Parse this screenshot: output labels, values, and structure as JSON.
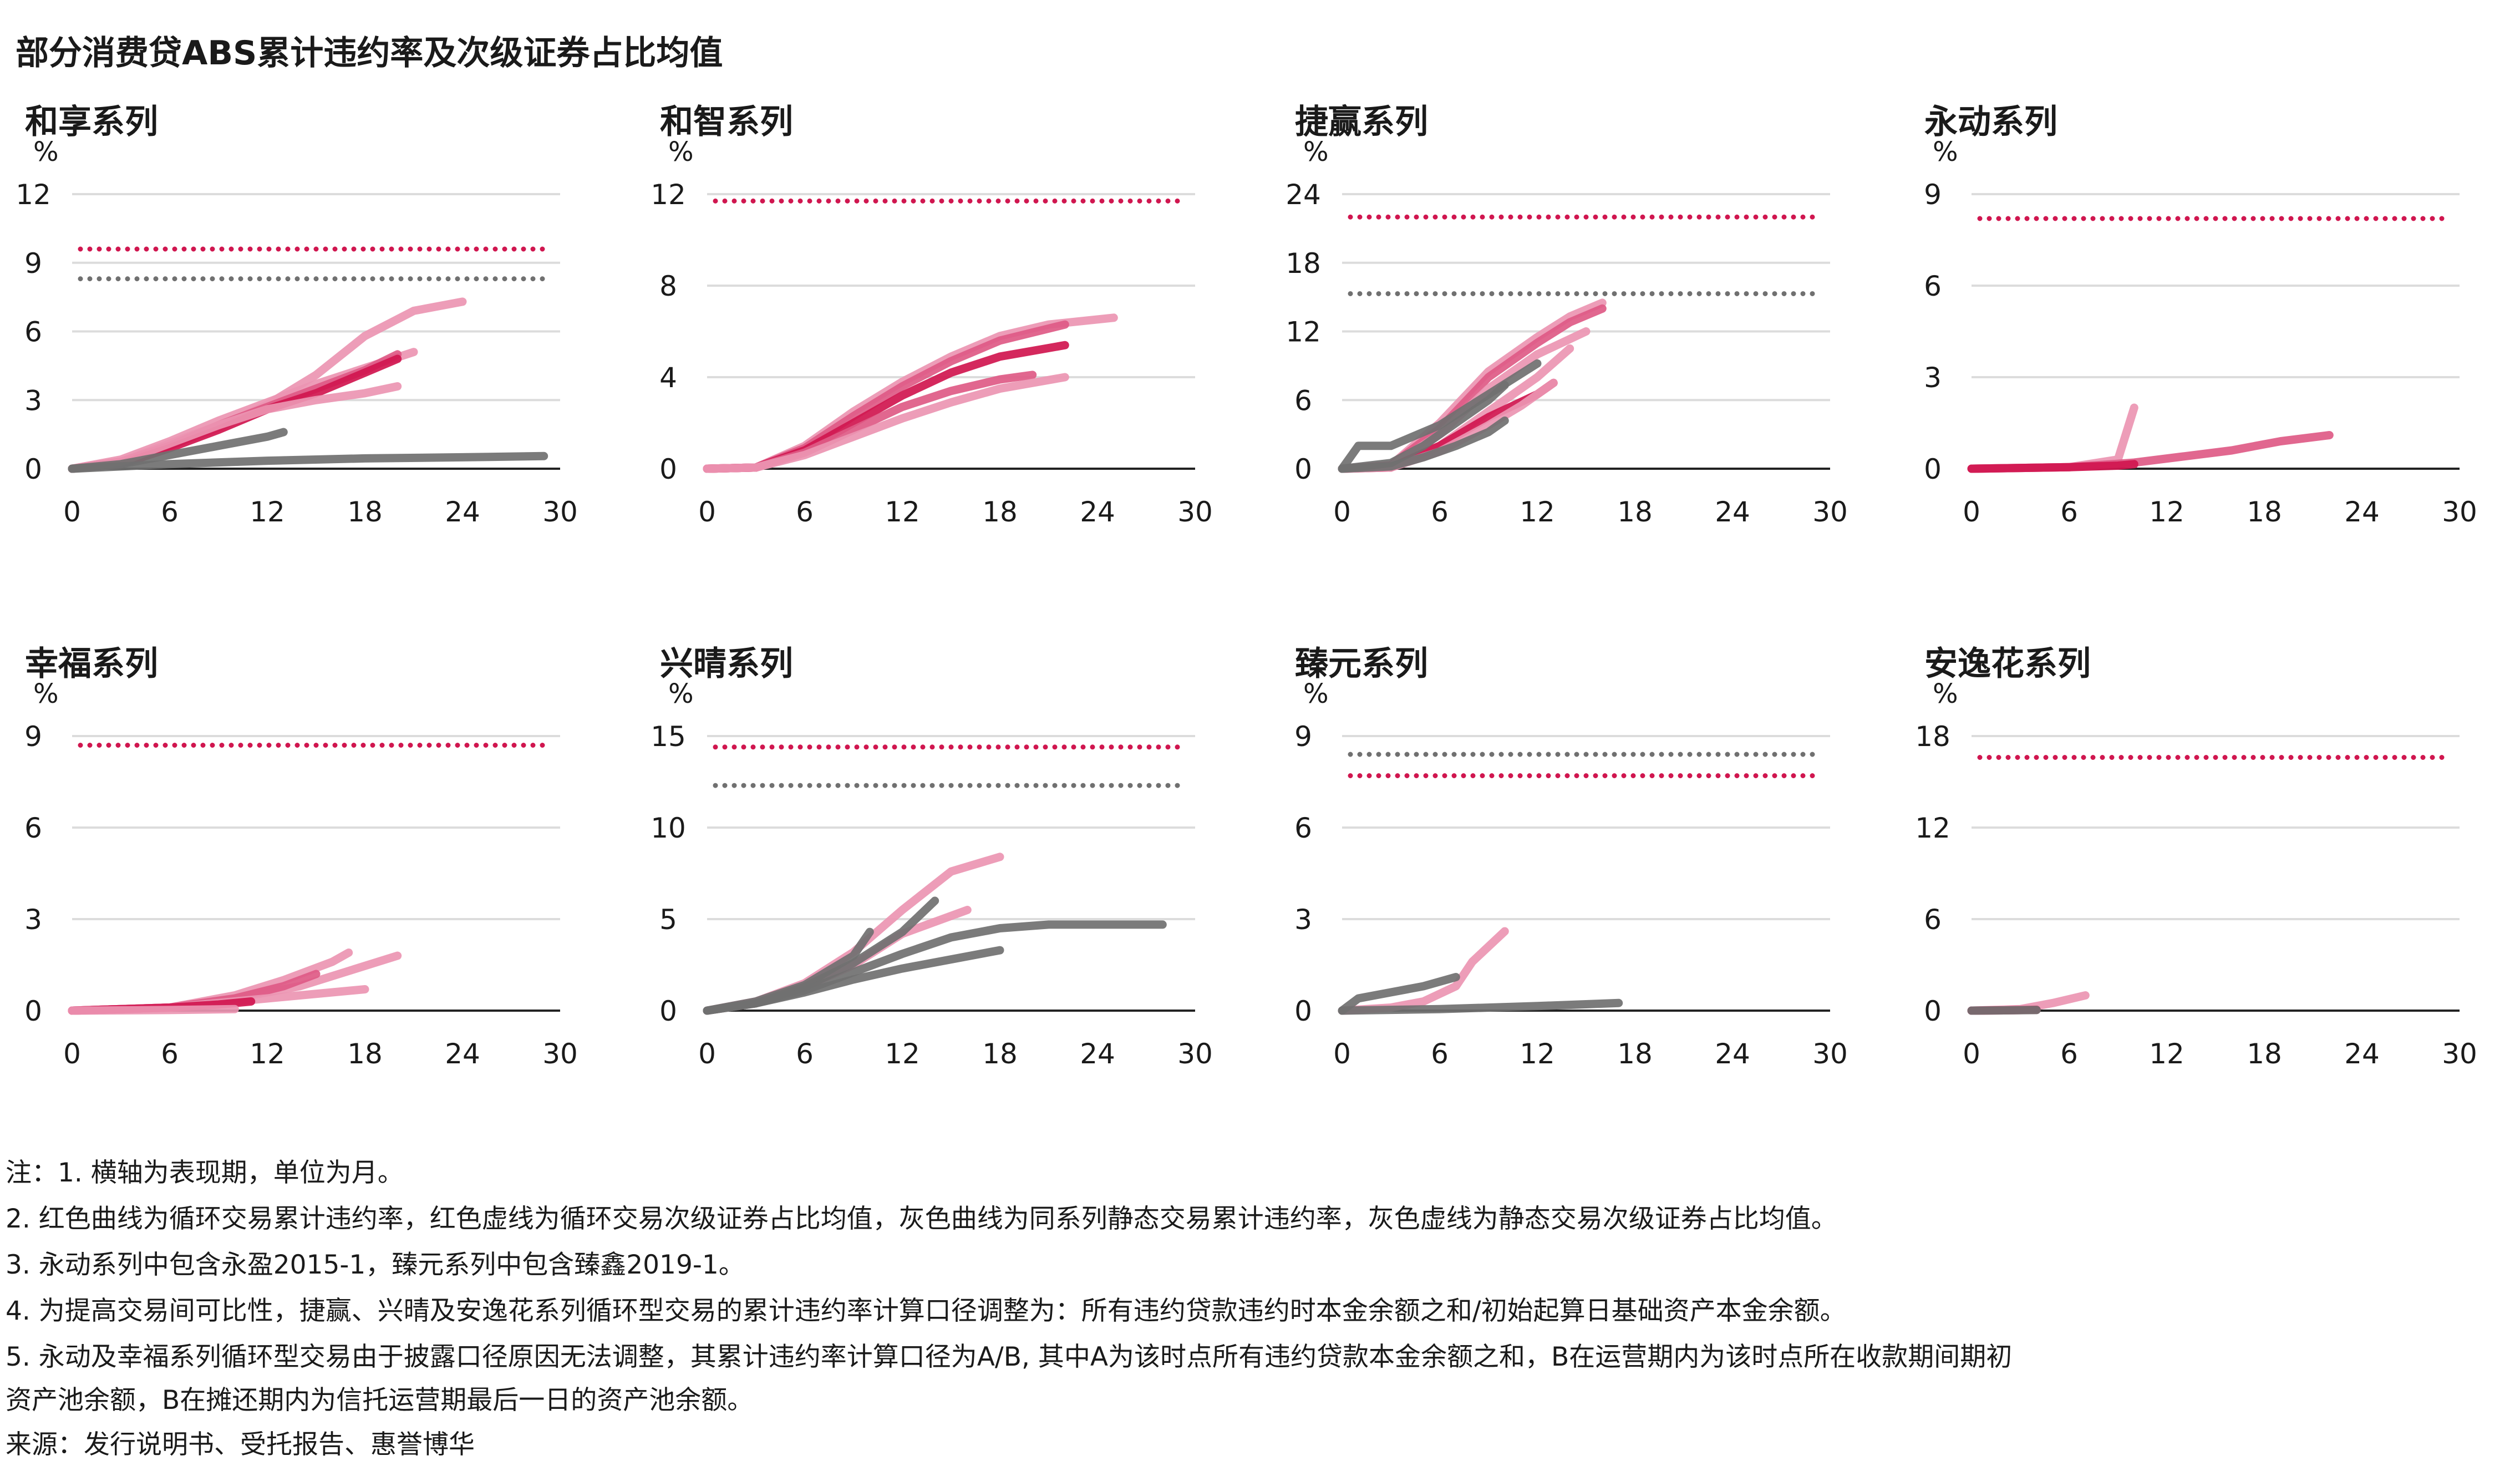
{
  "title": "部分消费贷ABS累计违约率及次级证券占比均值",
  "colors": {
    "red": "#d0164f",
    "red_mid": "#de5a86",
    "red_light": "#eb95b2",
    "gray": "#707070",
    "grid": "#dcdcdc",
    "axis": "#222222"
  },
  "notes": [
    "注：1.  横轴为表现期，单位为月。",
    "2.  红色曲线为循环交易累计违约率，红色虚线为循环交易次级证券占比均值，灰色曲线为同系列静态交易累计违约率，灰色虚线为静态交易次级证券占比均值。",
    "3.  永动系列中包含永盈2015-1，臻元系列中包含臻鑫2019-1。",
    "4.  为提高交易间可比性，捷赢、兴晴及安逸花系列循环型交易的累计违约率计算口径调整为：所有违约贷款违约时本金余额之和/初始起算日基础资产本金余额。",
    "5.  永动及幸福系列循环型交易由于披露口径原因无法调整，其累计违约率计算口径为A/B, 其中A为该时点所有违约贷款本金余额之和，B在运营期内为该时点所在收款期间期初",
    "资产池余额，B在摊还期内为信托运营期最后一日的资产池余额。"
  ],
  "source": "来源：发行说明书、受托报告、惠誉博华",
  "chart_data": [
    {
      "type": "line",
      "title": "和享系列",
      "ylabel": "%",
      "xlim": [
        0,
        30
      ],
      "ylim": [
        0,
        12
      ],
      "x_ticks": [
        0,
        6,
        12,
        18,
        24,
        30
      ],
      "y_ticks": [
        0,
        3,
        6,
        9,
        12
      ],
      "grid": true,
      "ref_lines": [
        {
          "y": 9.6,
          "color": "red"
        },
        {
          "y": 8.3,
          "color": "gray"
        }
      ],
      "series": [
        {
          "color": "red_light",
          "x": [
            0,
            3,
            6,
            9,
            12,
            15,
            18,
            21,
            24
          ],
          "y": [
            0,
            0.3,
            1,
            1.8,
            2.8,
            4.1,
            5.8,
            6.9,
            7.3
          ]
        },
        {
          "color": "red_light",
          "x": [
            0,
            3,
            6,
            9,
            12,
            15,
            18,
            21
          ],
          "y": [
            0,
            0.4,
            1.2,
            2.1,
            2.9,
            3.7,
            4.4,
            5.1
          ]
        },
        {
          "color": "red_mid",
          "x": [
            0,
            3,
            6,
            9,
            12,
            15,
            18,
            20
          ],
          "y": [
            0,
            0.3,
            1,
            1.9,
            2.7,
            3.5,
            4.3,
            5
          ]
        },
        {
          "color": "red",
          "x": [
            0,
            3,
            6,
            9,
            12,
            15,
            18,
            20
          ],
          "y": [
            0,
            0.2,
            0.9,
            1.7,
            2.6,
            3.3,
            4.2,
            4.8
          ]
        },
        {
          "color": "red_light",
          "x": [
            0,
            3,
            6,
            9,
            12,
            15,
            18,
            20
          ],
          "y": [
            0,
            0.3,
            1.1,
            1.9,
            2.6,
            3,
            3.3,
            3.6
          ]
        },
        {
          "color": "gray",
          "x": [
            0,
            3,
            6,
            9,
            12,
            13
          ],
          "y": [
            0,
            0.2,
            0.6,
            1,
            1.4,
            1.6
          ]
        },
        {
          "color": "gray",
          "x": [
            0,
            6,
            12,
            18,
            24,
            29
          ],
          "y": [
            0,
            0.2,
            0.35,
            0.45,
            0.5,
            0.55
          ]
        }
      ]
    },
    {
      "type": "line",
      "title": "和智系列",
      "ylabel": "%",
      "xlim": [
        0,
        30
      ],
      "ylim": [
        0,
        12
      ],
      "x_ticks": [
        0,
        6,
        12,
        18,
        24,
        30
      ],
      "y_ticks": [
        0,
        4,
        8,
        12
      ],
      "grid": true,
      "ref_lines": [
        {
          "y": 11.7,
          "color": "red"
        }
      ],
      "series": [
        {
          "color": "red_light",
          "x": [
            0,
            3,
            6,
            9,
            12,
            15,
            18,
            21,
            25
          ],
          "y": [
            0,
            0.05,
            1,
            2.5,
            3.8,
            4.9,
            5.8,
            6.3,
            6.6
          ]
        },
        {
          "color": "red_mid",
          "x": [
            0,
            3,
            6,
            9,
            12,
            15,
            18,
            22
          ],
          "y": [
            0,
            0.05,
            0.9,
            2.3,
            3.6,
            4.7,
            5.6,
            6.3
          ]
        },
        {
          "color": "red",
          "x": [
            0,
            3,
            6,
            9,
            12,
            15,
            18,
            22
          ],
          "y": [
            0,
            0.05,
            0.8,
            2,
            3.2,
            4.2,
            4.9,
            5.4
          ]
        },
        {
          "color": "red_mid",
          "x": [
            0,
            3,
            6,
            9,
            12,
            15,
            18,
            20
          ],
          "y": [
            0,
            0.05,
            0.7,
            1.7,
            2.7,
            3.4,
            3.9,
            4.1
          ]
        },
        {
          "color": "red_light",
          "x": [
            0,
            3,
            6,
            9,
            12,
            15,
            18,
            22
          ],
          "y": [
            0,
            0.05,
            0.6,
            1.4,
            2.2,
            2.9,
            3.5,
            4
          ]
        }
      ]
    },
    {
      "type": "line",
      "title": "捷赢系列",
      "ylabel": "%",
      "xlim": [
        0,
        30
      ],
      "ylim": [
        0,
        24
      ],
      "x_ticks": [
        0,
        6,
        12,
        18,
        24,
        30
      ],
      "y_ticks": [
        0,
        6,
        12,
        18,
        24
      ],
      "grid": true,
      "ref_lines": [
        {
          "y": 22,
          "color": "red"
        },
        {
          "y": 15.3,
          "color": "gray"
        }
      ],
      "series": [
        {
          "color": "red_light",
          "x": [
            0,
            3,
            6,
            9,
            12,
            14,
            16
          ],
          "y": [
            0,
            0.3,
            4,
            8.5,
            11.5,
            13.3,
            14.5
          ]
        },
        {
          "color": "red_mid",
          "x": [
            0,
            3,
            6,
            9,
            12,
            14,
            16
          ],
          "y": [
            0,
            0.3,
            3.5,
            8,
            11,
            12.8,
            14
          ]
        },
        {
          "color": "red_light",
          "x": [
            0,
            3,
            6,
            9,
            12,
            15
          ],
          "y": [
            0,
            0.2,
            3,
            7,
            10,
            12
          ]
        },
        {
          "color": "red_light",
          "x": [
            0,
            3,
            6,
            9,
            12,
            14
          ],
          "y": [
            0,
            0.2,
            2,
            5,
            8,
            10.5
          ]
        },
        {
          "color": "red",
          "x": [
            0,
            3,
            6,
            9,
            12,
            13
          ],
          "y": [
            0,
            0.1,
            2,
            4.5,
            6.5,
            7.5
          ]
        },
        {
          "color": "red_light",
          "x": [
            0,
            3,
            6,
            9,
            11,
            13
          ],
          "y": [
            0,
            0.1,
            1.5,
            3.8,
            5.5,
            7.5
          ]
        },
        {
          "color": "gray",
          "x": [
            0,
            1,
            3,
            6,
            9,
            12
          ],
          "y": [
            0,
            2,
            2,
            3.8,
            6.5,
            9.2
          ]
        },
        {
          "color": "gray",
          "x": [
            0,
            3,
            5,
            7,
            9,
            10
          ],
          "y": [
            0,
            0.5,
            2,
            4,
            6,
            7.3
          ]
        },
        {
          "color": "gray",
          "x": [
            0,
            3,
            5,
            7,
            9,
            10
          ],
          "y": [
            0,
            0.2,
            1,
            2,
            3.2,
            4.2
          ]
        }
      ]
    },
    {
      "type": "line",
      "title": "永动系列",
      "ylabel": "%",
      "xlim": [
        0,
        30
      ],
      "ylim": [
        0,
        9
      ],
      "x_ticks": [
        0,
        6,
        12,
        18,
        24,
        30
      ],
      "y_ticks": [
        0,
        3,
        6,
        9
      ],
      "grid": true,
      "ref_lines": [
        {
          "y": 8.2,
          "color": "red"
        }
      ],
      "series": [
        {
          "color": "red_light",
          "x": [
            0,
            6,
            9,
            10
          ],
          "y": [
            0,
            0.05,
            0.3,
            2
          ]
        },
        {
          "color": "red_mid",
          "x": [
            0,
            6,
            10,
            13,
            16,
            19,
            22
          ],
          "y": [
            0,
            0.05,
            0.2,
            0.4,
            0.6,
            0.9,
            1.1
          ]
        },
        {
          "color": "red",
          "x": [
            0,
            6,
            9,
            10
          ],
          "y": [
            0,
            0.05,
            0.1,
            0.15
          ]
        }
      ]
    },
    {
      "type": "line",
      "title": "幸福系列",
      "ylabel": "%",
      "xlim": [
        0,
        30
      ],
      "ylim": [
        0,
        9
      ],
      "x_ticks": [
        0,
        6,
        12,
        18,
        24,
        30
      ],
      "y_ticks": [
        0,
        3,
        6,
        9
      ],
      "grid": true,
      "ref_lines": [
        {
          "y": 8.7,
          "color": "red"
        }
      ],
      "series": [
        {
          "color": "red_light",
          "x": [
            0,
            6,
            10,
            13,
            16,
            17
          ],
          "y": [
            0,
            0.1,
            0.5,
            1,
            1.6,
            1.9
          ]
        },
        {
          "color": "red_light",
          "x": [
            0,
            6,
            10,
            14,
            17,
            20
          ],
          "y": [
            0,
            0.1,
            0.4,
            0.8,
            1.3,
            1.8
          ]
        },
        {
          "color": "red_mid",
          "x": [
            0,
            6,
            10,
            13,
            15
          ],
          "y": [
            0,
            0.1,
            0.4,
            0.8,
            1.2
          ]
        },
        {
          "color": "red_light",
          "x": [
            0,
            6,
            10,
            14,
            18
          ],
          "y": [
            0,
            0.1,
            0.3,
            0.5,
            0.7
          ]
        },
        {
          "color": "red",
          "x": [
            0,
            6,
            9,
            11
          ],
          "y": [
            0,
            0.1,
            0.2,
            0.3
          ]
        },
        {
          "color": "red_light",
          "x": [
            0,
            6,
            10
          ],
          "y": [
            0,
            0.02,
            0.05
          ]
        }
      ]
    },
    {
      "type": "line",
      "title": "兴晴系列",
      "ylabel": "%",
      "xlim": [
        0,
        30
      ],
      "ylim": [
        0,
        15
      ],
      "x_ticks": [
        0,
        6,
        12,
        18,
        24,
        30
      ],
      "y_ticks": [
        0,
        5,
        10,
        15
      ],
      "grid": true,
      "ref_lines": [
        {
          "y": 14.4,
          "color": "red"
        },
        {
          "y": 12.3,
          "color": "gray"
        }
      ],
      "series": [
        {
          "color": "red_light",
          "x": [
            0,
            3,
            6,
            9,
            12,
            15,
            18
          ],
          "y": [
            0,
            0.5,
            1.5,
            3.2,
            5.5,
            7.6,
            8.4
          ]
        },
        {
          "color": "red_light",
          "x": [
            0,
            3,
            6,
            9,
            12,
            16
          ],
          "y": [
            0,
            0.4,
            1.3,
            2.5,
            4.2,
            5.5
          ]
        },
        {
          "color": "gray",
          "x": [
            0,
            3,
            6,
            9,
            10
          ],
          "y": [
            0,
            0.5,
            1.4,
            3,
            4.3
          ]
        },
        {
          "color": "gray",
          "x": [
            0,
            3,
            6,
            9,
            12,
            14
          ],
          "y": [
            0,
            0.4,
            1.3,
            2.6,
            4.3,
            6
          ]
        },
        {
          "color": "gray",
          "x": [
            0,
            3,
            6,
            9,
            12,
            15,
            18,
            21,
            24,
            28
          ],
          "y": [
            0,
            0.4,
            1.1,
            2.1,
            3.1,
            4,
            4.5,
            4.7,
            4.7,
            4.7
          ]
        },
        {
          "color": "gray",
          "x": [
            0,
            3,
            6,
            9,
            12,
            15,
            18
          ],
          "y": [
            0,
            0.4,
            1,
            1.7,
            2.3,
            2.8,
            3.3
          ]
        }
      ]
    },
    {
      "type": "line",
      "title": "臻元系列",
      "ylabel": "%",
      "xlim": [
        0,
        30
      ],
      "ylim": [
        0,
        9
      ],
      "x_ticks": [
        0,
        6,
        12,
        18,
        24,
        30
      ],
      "y_ticks": [
        0,
        3,
        6,
        9
      ],
      "grid": true,
      "ref_lines": [
        {
          "y": 8.4,
          "color": "gray"
        },
        {
          "y": 7.7,
          "color": "red"
        }
      ],
      "series": [
        {
          "color": "red_light",
          "x": [
            0,
            3,
            5,
            7,
            8,
            10
          ],
          "y": [
            0,
            0.1,
            0.3,
            0.8,
            1.6,
            2.6
          ]
        },
        {
          "color": "gray",
          "x": [
            0,
            1,
            3,
            5,
            7
          ],
          "y": [
            0,
            0.4,
            0.6,
            0.8,
            1.1
          ]
        },
        {
          "color": "gray",
          "x": [
            0,
            6,
            12,
            17
          ],
          "y": [
            0,
            0.05,
            0.15,
            0.25
          ]
        }
      ]
    },
    {
      "type": "line",
      "title": "安逸花系列",
      "ylabel": "%",
      "xlim": [
        0,
        30
      ],
      "ylim": [
        0,
        18
      ],
      "x_ticks": [
        0,
        6,
        12,
        18,
        24,
        30
      ],
      "y_ticks": [
        0,
        6,
        12,
        18
      ],
      "grid": true,
      "ref_lines": [
        {
          "y": 16.6,
          "color": "red"
        }
      ],
      "series": [
        {
          "color": "red_light",
          "x": [
            0,
            3,
            5,
            7
          ],
          "y": [
            0,
            0.1,
            0.5,
            1
          ]
        },
        {
          "color": "red",
          "x": [
            0,
            2,
            4
          ],
          "y": [
            0,
            0.02,
            0.05
          ]
        },
        {
          "color": "gray",
          "x": [
            0,
            2,
            4
          ],
          "y": [
            0,
            0.02,
            0.04
          ]
        }
      ]
    }
  ]
}
